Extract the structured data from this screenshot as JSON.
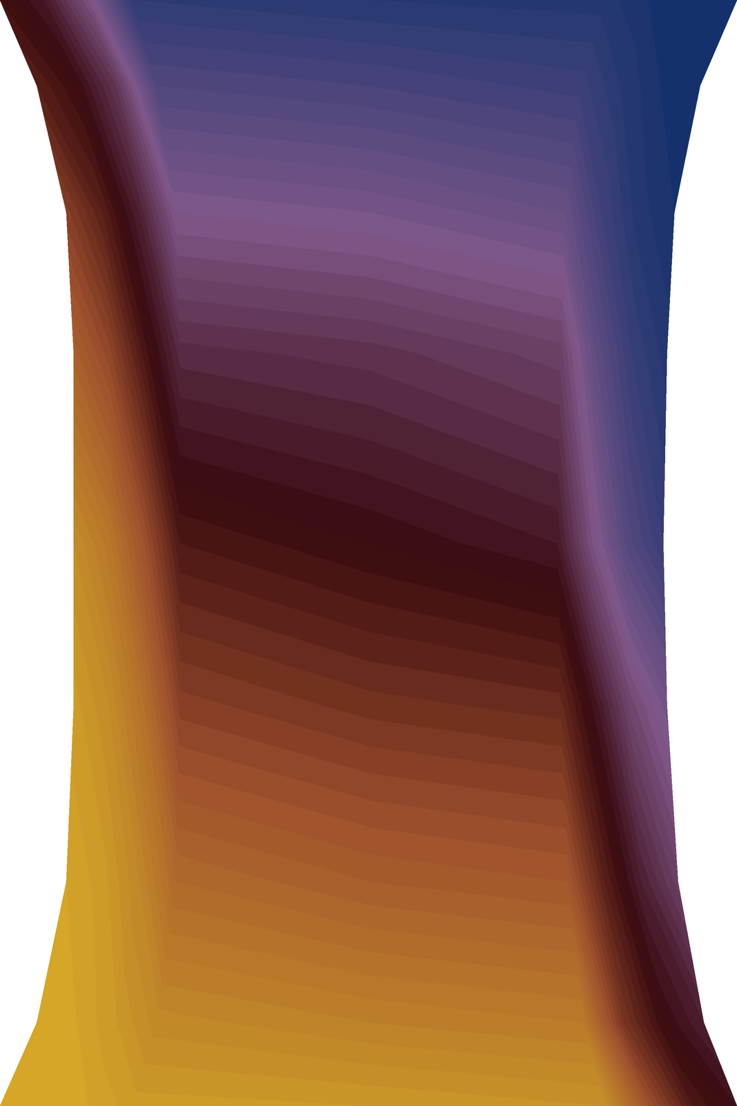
{
  "chart_data": {
    "type": "contour",
    "tick_labels": false,
    "u": [
      0.0,
      0.06,
      0.12,
      0.18,
      0.5,
      0.82,
      0.88,
      0.94,
      1.0
    ],
    "y": [
      0.0,
      0.113,
      0.304,
      0.543,
      0.763,
      1.021,
      1.212,
      1.384,
      1.5
    ],
    "left": [
      0.0,
      0.05,
      0.09,
      0.1,
      0.1,
      0.1,
      0.09,
      0.05,
      0.0
    ],
    "right": [
      1.0,
      0.955,
      0.92,
      0.905,
      0.9,
      0.905,
      0.915,
      0.95,
      1.0
    ],
    "values": [
      [
        0.0,
        0.0,
        0.02,
        0.05,
        0.06,
        0.08,
        0.3,
        0.46,
        0.52
      ],
      [
        0.0,
        0.02,
        0.06,
        0.11,
        0.14,
        0.16,
        0.38,
        0.5,
        0.56
      ],
      [
        0.02,
        0.05,
        0.12,
        0.22,
        0.26,
        0.28,
        0.44,
        0.56,
        0.65
      ],
      [
        0.05,
        0.1,
        0.2,
        0.35,
        0.39,
        0.41,
        0.53,
        0.67,
        0.75
      ],
      [
        0.1,
        0.17,
        0.3,
        0.46,
        0.5,
        0.54,
        0.7,
        0.83,
        0.9
      ],
      [
        0.25,
        0.33,
        0.47,
        0.59,
        0.61,
        0.65,
        0.8,
        0.9,
        0.95
      ],
      [
        0.35,
        0.44,
        0.56,
        0.72,
        0.74,
        0.78,
        0.88,
        0.95,
        0.98
      ],
      [
        0.44,
        0.5,
        0.62,
        0.84,
        0.86,
        0.89,
        0.94,
        0.98,
        1.0
      ],
      [
        0.48,
        0.54,
        0.7,
        0.92,
        0.94,
        0.95,
        0.98,
        1.0,
        1.0
      ]
    ],
    "zlim": [
      0,
      1
    ]
  }
}
